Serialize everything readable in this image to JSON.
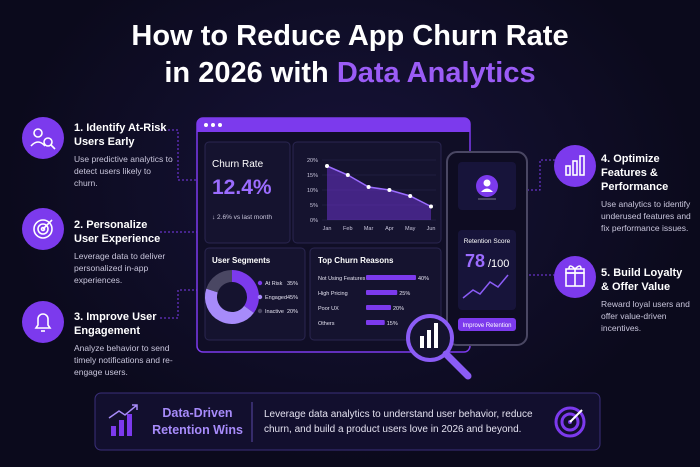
{
  "header": {
    "title_line1": "How to Reduce App Churn Rate",
    "title_line2_plain": "in 2026 with",
    "title_line2_highlight": "Data Analytics"
  },
  "steps": [
    {
      "title": "1. Identify At-Risk Users Early",
      "description": "Use predictive analytics to detect users likely to churn."
    },
    {
      "title": "2. Personalize User Experience",
      "description": "Leverage data to deliver personalized in-app experiences."
    },
    {
      "title": "3. Improve User Engagement",
      "description": "Analyze behavior to send timely notifications and re-engage users."
    },
    {
      "title": "4. Optimize Features & Performance",
      "description": "Use analytics to identify underused features and fix performance issues."
    },
    {
      "title": "5. Build Loyalty & Offer Value",
      "description": "Reward loyal users and offer value-driven incentives."
    }
  ],
  "dashboard": {
    "churn_rate": {
      "label": "Churn Rate",
      "value": "12.4%",
      "change": "↓ 2.6% vs last month"
    },
    "trend": {
      "months": [
        "Jan",
        "Feb",
        "Mar",
        "Apr",
        "May",
        "Jun"
      ],
      "values": [
        18,
        15,
        11,
        10,
        8,
        4.5
      ],
      "ylim": [
        0,
        20
      ],
      "yticks": [
        {
          "value": 0,
          "label": "0%"
        },
        {
          "value": 5,
          "label": "5%"
        },
        {
          "value": 10,
          "label": "10%"
        },
        {
          "value": 15,
          "label": "15%"
        },
        {
          "value": 20,
          "label": "20%"
        }
      ]
    },
    "segments": {
      "title": "User Segments",
      "items": [
        {
          "name": "At Risk",
          "value": 35,
          "value_label": "35%",
          "color": "#7c3aed"
        },
        {
          "name": "Engaged",
          "value": 45,
          "value_label": "45%",
          "color": "#a78bfa"
        },
        {
          "name": "Inactive",
          "value": 20,
          "value_label": "20%",
          "color": "#4a4763"
        }
      ]
    },
    "reasons": {
      "title": "Top Churn Reasons",
      "items": [
        {
          "name": "Not Using Features",
          "value": 40,
          "value_label": "40%"
        },
        {
          "name": "High Pricing",
          "value": 25,
          "value_label": "25%"
        },
        {
          "name": "Poor UX",
          "value": 20,
          "value_label": "20%"
        },
        {
          "name": "Others",
          "value": 15,
          "value_label": "15%"
        }
      ]
    }
  },
  "phone": {
    "retention_label": "Retention Score",
    "score": "78",
    "out_of": "/100",
    "button": "Improve Retention"
  },
  "footer": {
    "title": "Data-Driven Retention Wins",
    "text": "Leverage data analytics to understand user behavior, reduce churn, and build a product users love in 2026 and beyond."
  }
}
